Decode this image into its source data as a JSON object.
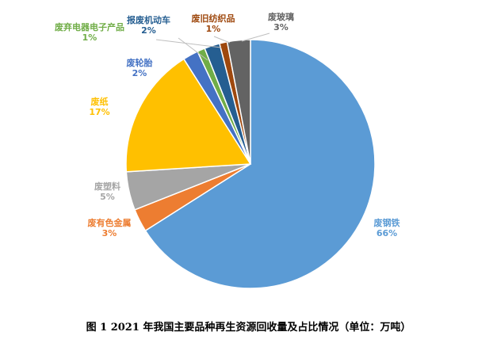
{
  "caption": "图 1  2021 年我国主要品种再生资源回收量及占比情况（单位：万吨）",
  "chart_data": {
    "type": "pie",
    "start_angle_deg": 0,
    "direction": "clockwise",
    "slices": [
      {
        "name": "废钢铁",
        "pct": 66,
        "label": "66%",
        "color": "#5B9BD5",
        "label_color": "#5B9BD5"
      },
      {
        "name": "废有色金属",
        "pct": 3,
        "label": "3%",
        "color": "#ED7D31",
        "label_color": "#ED7D31"
      },
      {
        "name": "废塑料",
        "pct": 5,
        "label": "5%",
        "color": "#A5A5A5",
        "label_color": "#A5A5A5"
      },
      {
        "name": "废纸",
        "pct": 17,
        "label": "17%",
        "color": "#FFC000",
        "label_color": "#FFC000"
      },
      {
        "name": "废轮胎",
        "pct": 2,
        "label": "2%",
        "color": "#4472C4",
        "label_color": "#4472C4"
      },
      {
        "name": "废弃电器电子产品",
        "pct": 1,
        "label": "1%",
        "color": "#70AD47",
        "label_color": "#70AD47"
      },
      {
        "name": "报废机动车",
        "pct": 2,
        "label": "2%",
        "color": "#255E91",
        "label_color": "#255E91"
      },
      {
        "name": "废旧纺织品",
        "pct": 1,
        "label": "1%",
        "color": "#9E480E",
        "label_color": "#9E480E"
      },
      {
        "name": "废玻璃",
        "pct": 3,
        "label": "3%",
        "color": "#636363",
        "label_color": "#636363"
      }
    ]
  }
}
